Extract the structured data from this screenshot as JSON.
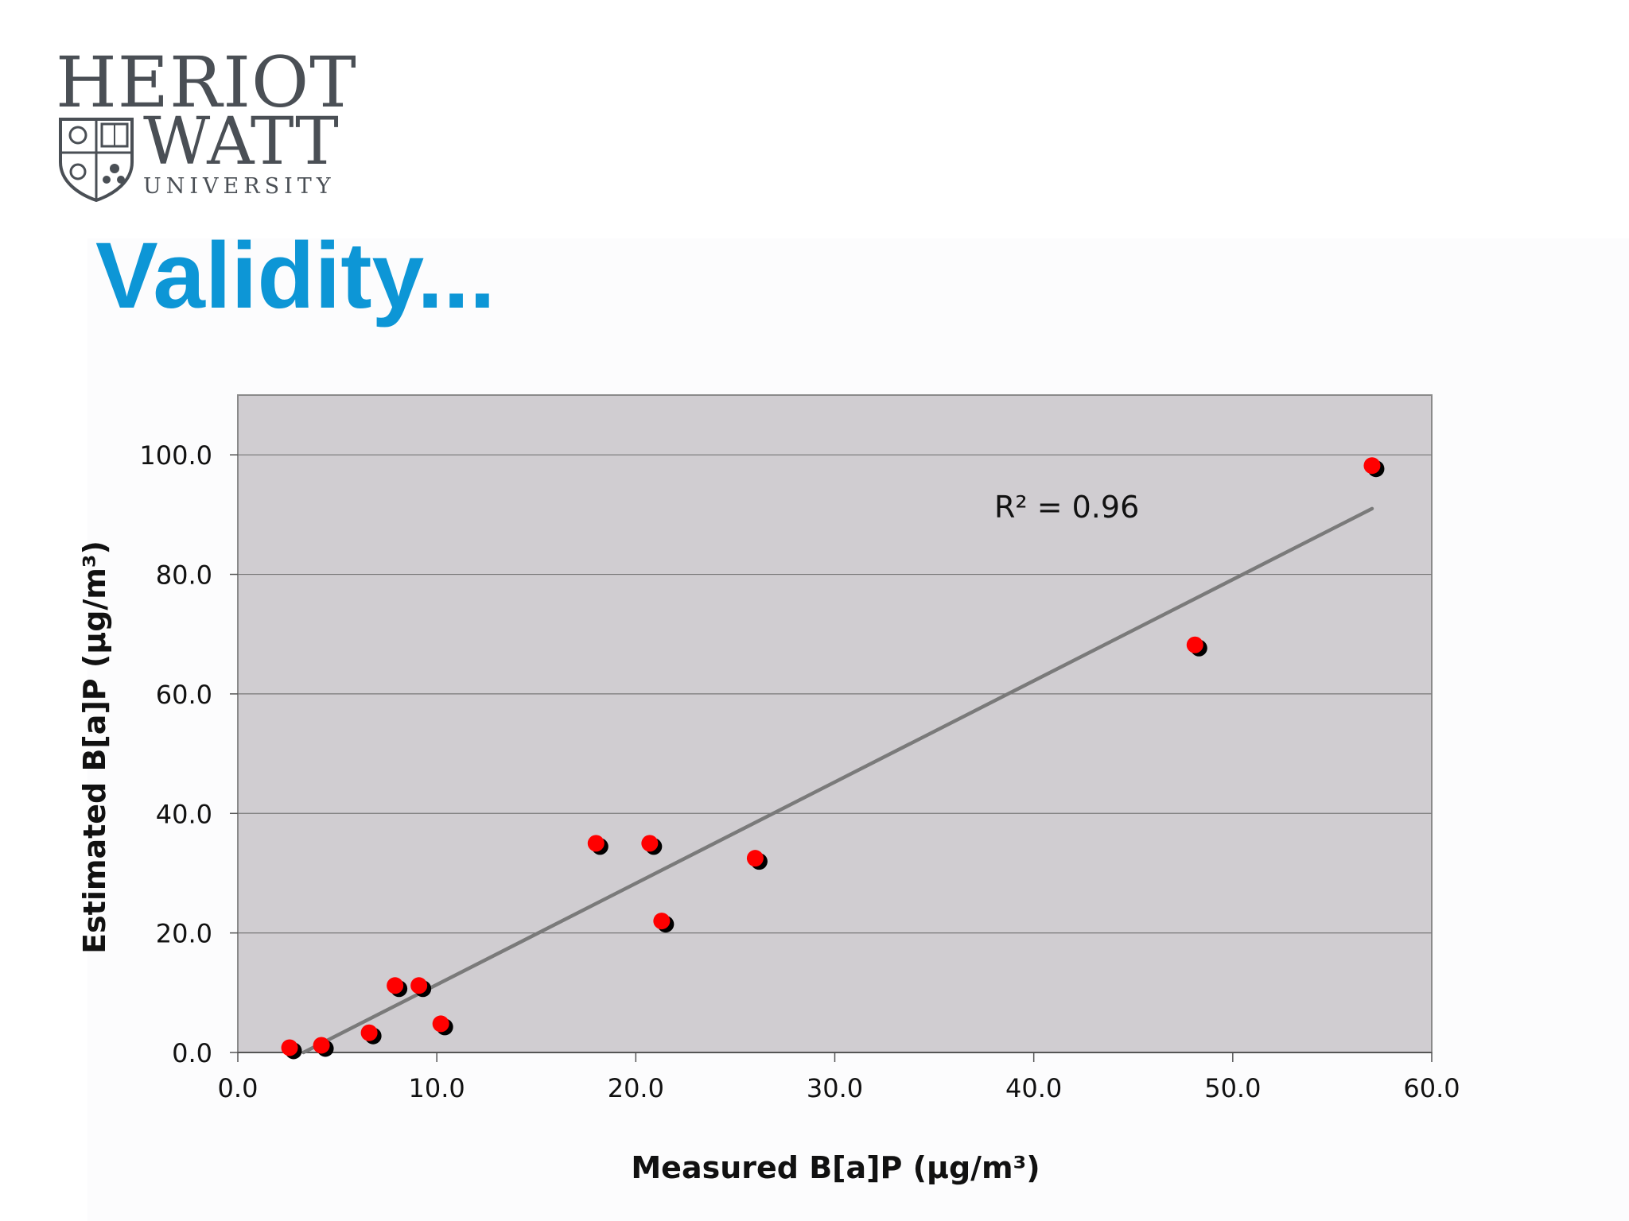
{
  "logo": {
    "line1": "HERIOT",
    "line2": "WATT",
    "line3": "UNIVERSITY"
  },
  "slide_title": "Validity...",
  "chart_data": {
    "type": "scatter",
    "title": "",
    "xlabel": "Measured B[a]P (µg/m³)",
    "ylabel": "Estimated B[a]P (µg/m³)",
    "xlim": [
      0,
      60
    ],
    "ylim": [
      0,
      110
    ],
    "xticks": [
      "0.0",
      "10.0",
      "20.0",
      "30.0",
      "40.0",
      "50.0",
      "60.0"
    ],
    "yticks": [
      "0.0",
      "20.0",
      "40.0",
      "60.0",
      "80.0",
      "100.0"
    ],
    "grid": "horizontal",
    "legend": "none",
    "plot_background": "#d0cdd1",
    "point_color": "#ff0000",
    "point_shadow_color": "#000000",
    "trendline_color": "#7a7a7a",
    "annotation": "R² = 0.96",
    "trendline": {
      "x": [
        3.3,
        57.0
      ],
      "y": [
        0.0,
        91.0
      ]
    },
    "series": [
      {
        "x": [
          2.6,
          4.2,
          6.6,
          7.9,
          9.1,
          10.2,
          18.0,
          20.7,
          21.3,
          26.0,
          48.1,
          57.0
        ],
        "y": [
          0.8,
          1.2,
          3.3,
          11.2,
          11.2,
          4.8,
          35.0,
          35.0,
          22.0,
          32.5,
          68.2,
          98.2
        ]
      }
    ]
  }
}
